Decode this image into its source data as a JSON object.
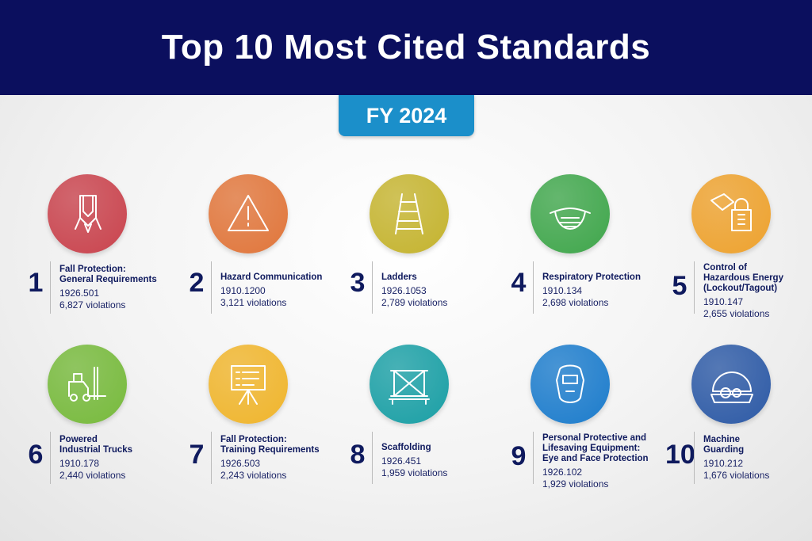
{
  "header": {
    "title": "Top 10 Most Cited Standards"
  },
  "badge": {
    "label": "FY 2024"
  },
  "items": [
    {
      "rank": "1",
      "title": "Fall Protection: General Requirements",
      "title_lines": [
        "Fall Protection:",
        "General Requirements"
      ],
      "code": "1926.501",
      "violations": "6,827 violations",
      "color": "#c9434d",
      "icon": "harness-icon"
    },
    {
      "rank": "2",
      "title": "Hazard Communication",
      "title_lines": [
        "Hazard Communication"
      ],
      "code": "1910.1200",
      "violations": "3,121 violations",
      "color": "#e0753a",
      "icon": "warning-icon"
    },
    {
      "rank": "3",
      "title": "Ladders",
      "title_lines": [
        "Ladders"
      ],
      "code": "1926.1053",
      "violations": "2,789 violations",
      "color": "#c4b32e",
      "icon": "ladder-icon"
    },
    {
      "rank": "4",
      "title": "Respiratory Protection",
      "title_lines": [
        "Respiratory Protection"
      ],
      "code": "1910.134",
      "violations": "2,698 violations",
      "color": "#3fa64b",
      "icon": "respirator-mask-icon"
    },
    {
      "rank": "5",
      "title": "Control of Hazardous Energy (Lockout/Tagout)",
      "title_lines": [
        "Control of",
        "Hazardous Energy",
        "(Lockout/Tagout)"
      ],
      "code": "1910.147",
      "violations": "2,655 violations",
      "color": "#eea22e",
      "icon": "padlock-tag-icon"
    },
    {
      "rank": "6",
      "title": "Powered Industrial Trucks",
      "title_lines": [
        "Powered",
        "Industrial Trucks"
      ],
      "code": "1910.178",
      "violations": "2,440 violations",
      "color": "#77ba3c",
      "icon": "forklift-icon"
    },
    {
      "rank": "7",
      "title": "Fall Protection: Training Requirements",
      "title_lines": [
        "Fall Protection:",
        "Training Requirements"
      ],
      "code": "1926.503",
      "violations": "2,243 violations",
      "color": "#f0b52c",
      "icon": "presentation-board-icon"
    },
    {
      "rank": "8",
      "title": "Scaffolding",
      "title_lines": [
        "Scaffolding"
      ],
      "code": "1926.451",
      "violations": "1,959 violations",
      "color": "#1a9fa5",
      "icon": "scaffold-icon"
    },
    {
      "rank": "9",
      "title": "Personal Protective and Lifesaving Equipment: Eye and Face Protection",
      "title_lines": [
        "Personal Protective and",
        "Lifesaving Equipment:",
        "Eye and Face Protection"
      ],
      "code": "1926.102",
      "violations": "1,929 violations",
      "color": "#1c7ccc",
      "icon": "welding-mask-icon"
    },
    {
      "rank": "10",
      "title": "Machine Guarding",
      "title_lines": [
        "Machine",
        "Guarding"
      ],
      "code": "1910.212",
      "violations": "1,676 violations",
      "color": "#2d5aa6",
      "icon": "machine-guard-icon"
    }
  ]
}
